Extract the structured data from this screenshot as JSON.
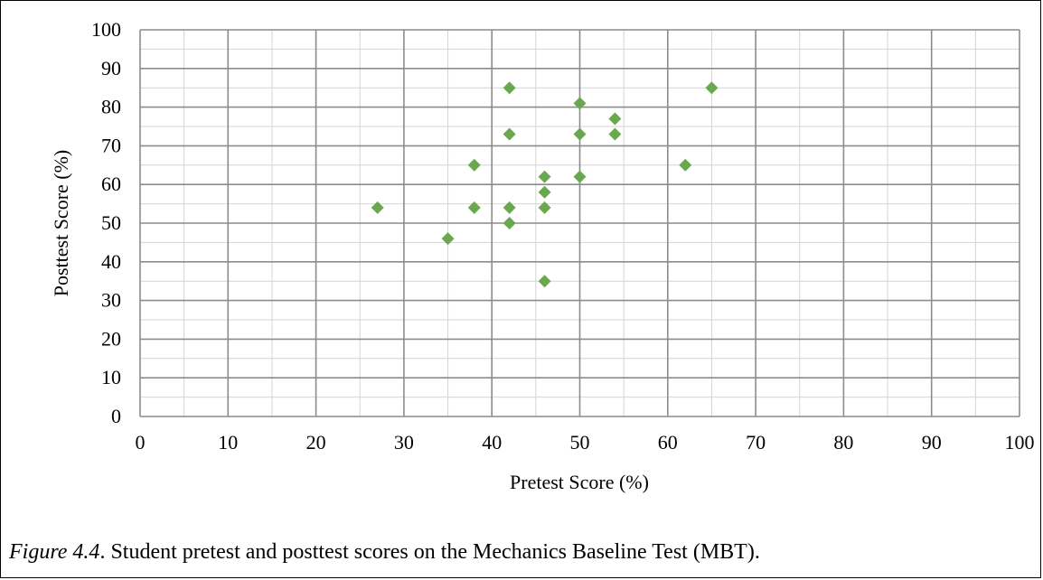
{
  "chart_data": {
    "type": "scatter",
    "title": "",
    "xlabel": "Pretest Score (%)",
    "ylabel": "Posttest Score (%)",
    "xlim": [
      0,
      100
    ],
    "ylim": [
      0,
      100
    ],
    "xticks": [
      0,
      10,
      20,
      30,
      40,
      50,
      60,
      70,
      80,
      90,
      100
    ],
    "yticks": [
      0,
      10,
      20,
      30,
      40,
      50,
      60,
      70,
      80,
      90,
      100
    ],
    "grid": true,
    "marker": "diamond",
    "color": "#6aa84f",
    "series": [
      {
        "points": [
          {
            "x": 27,
            "y": 54
          },
          {
            "x": 35,
            "y": 46
          },
          {
            "x": 38,
            "y": 54
          },
          {
            "x": 38,
            "y": 65
          },
          {
            "x": 42,
            "y": 85
          },
          {
            "x": 42,
            "y": 73
          },
          {
            "x": 42,
            "y": 54
          },
          {
            "x": 42,
            "y": 50
          },
          {
            "x": 46,
            "y": 62
          },
          {
            "x": 46,
            "y": 58
          },
          {
            "x": 46,
            "y": 54
          },
          {
            "x": 46,
            "y": 35
          },
          {
            "x": 50,
            "y": 81
          },
          {
            "x": 50,
            "y": 73
          },
          {
            "x": 50,
            "y": 62
          },
          {
            "x": 54,
            "y": 77
          },
          {
            "x": 54,
            "y": 73
          },
          {
            "x": 62,
            "y": 65
          },
          {
            "x": 65,
            "y": 85
          }
        ]
      }
    ]
  },
  "caption": {
    "figure_label": "Figure 4.4",
    "text": ". Student pretest and posttest scores on the Mechanics Baseline Test (MBT)."
  }
}
